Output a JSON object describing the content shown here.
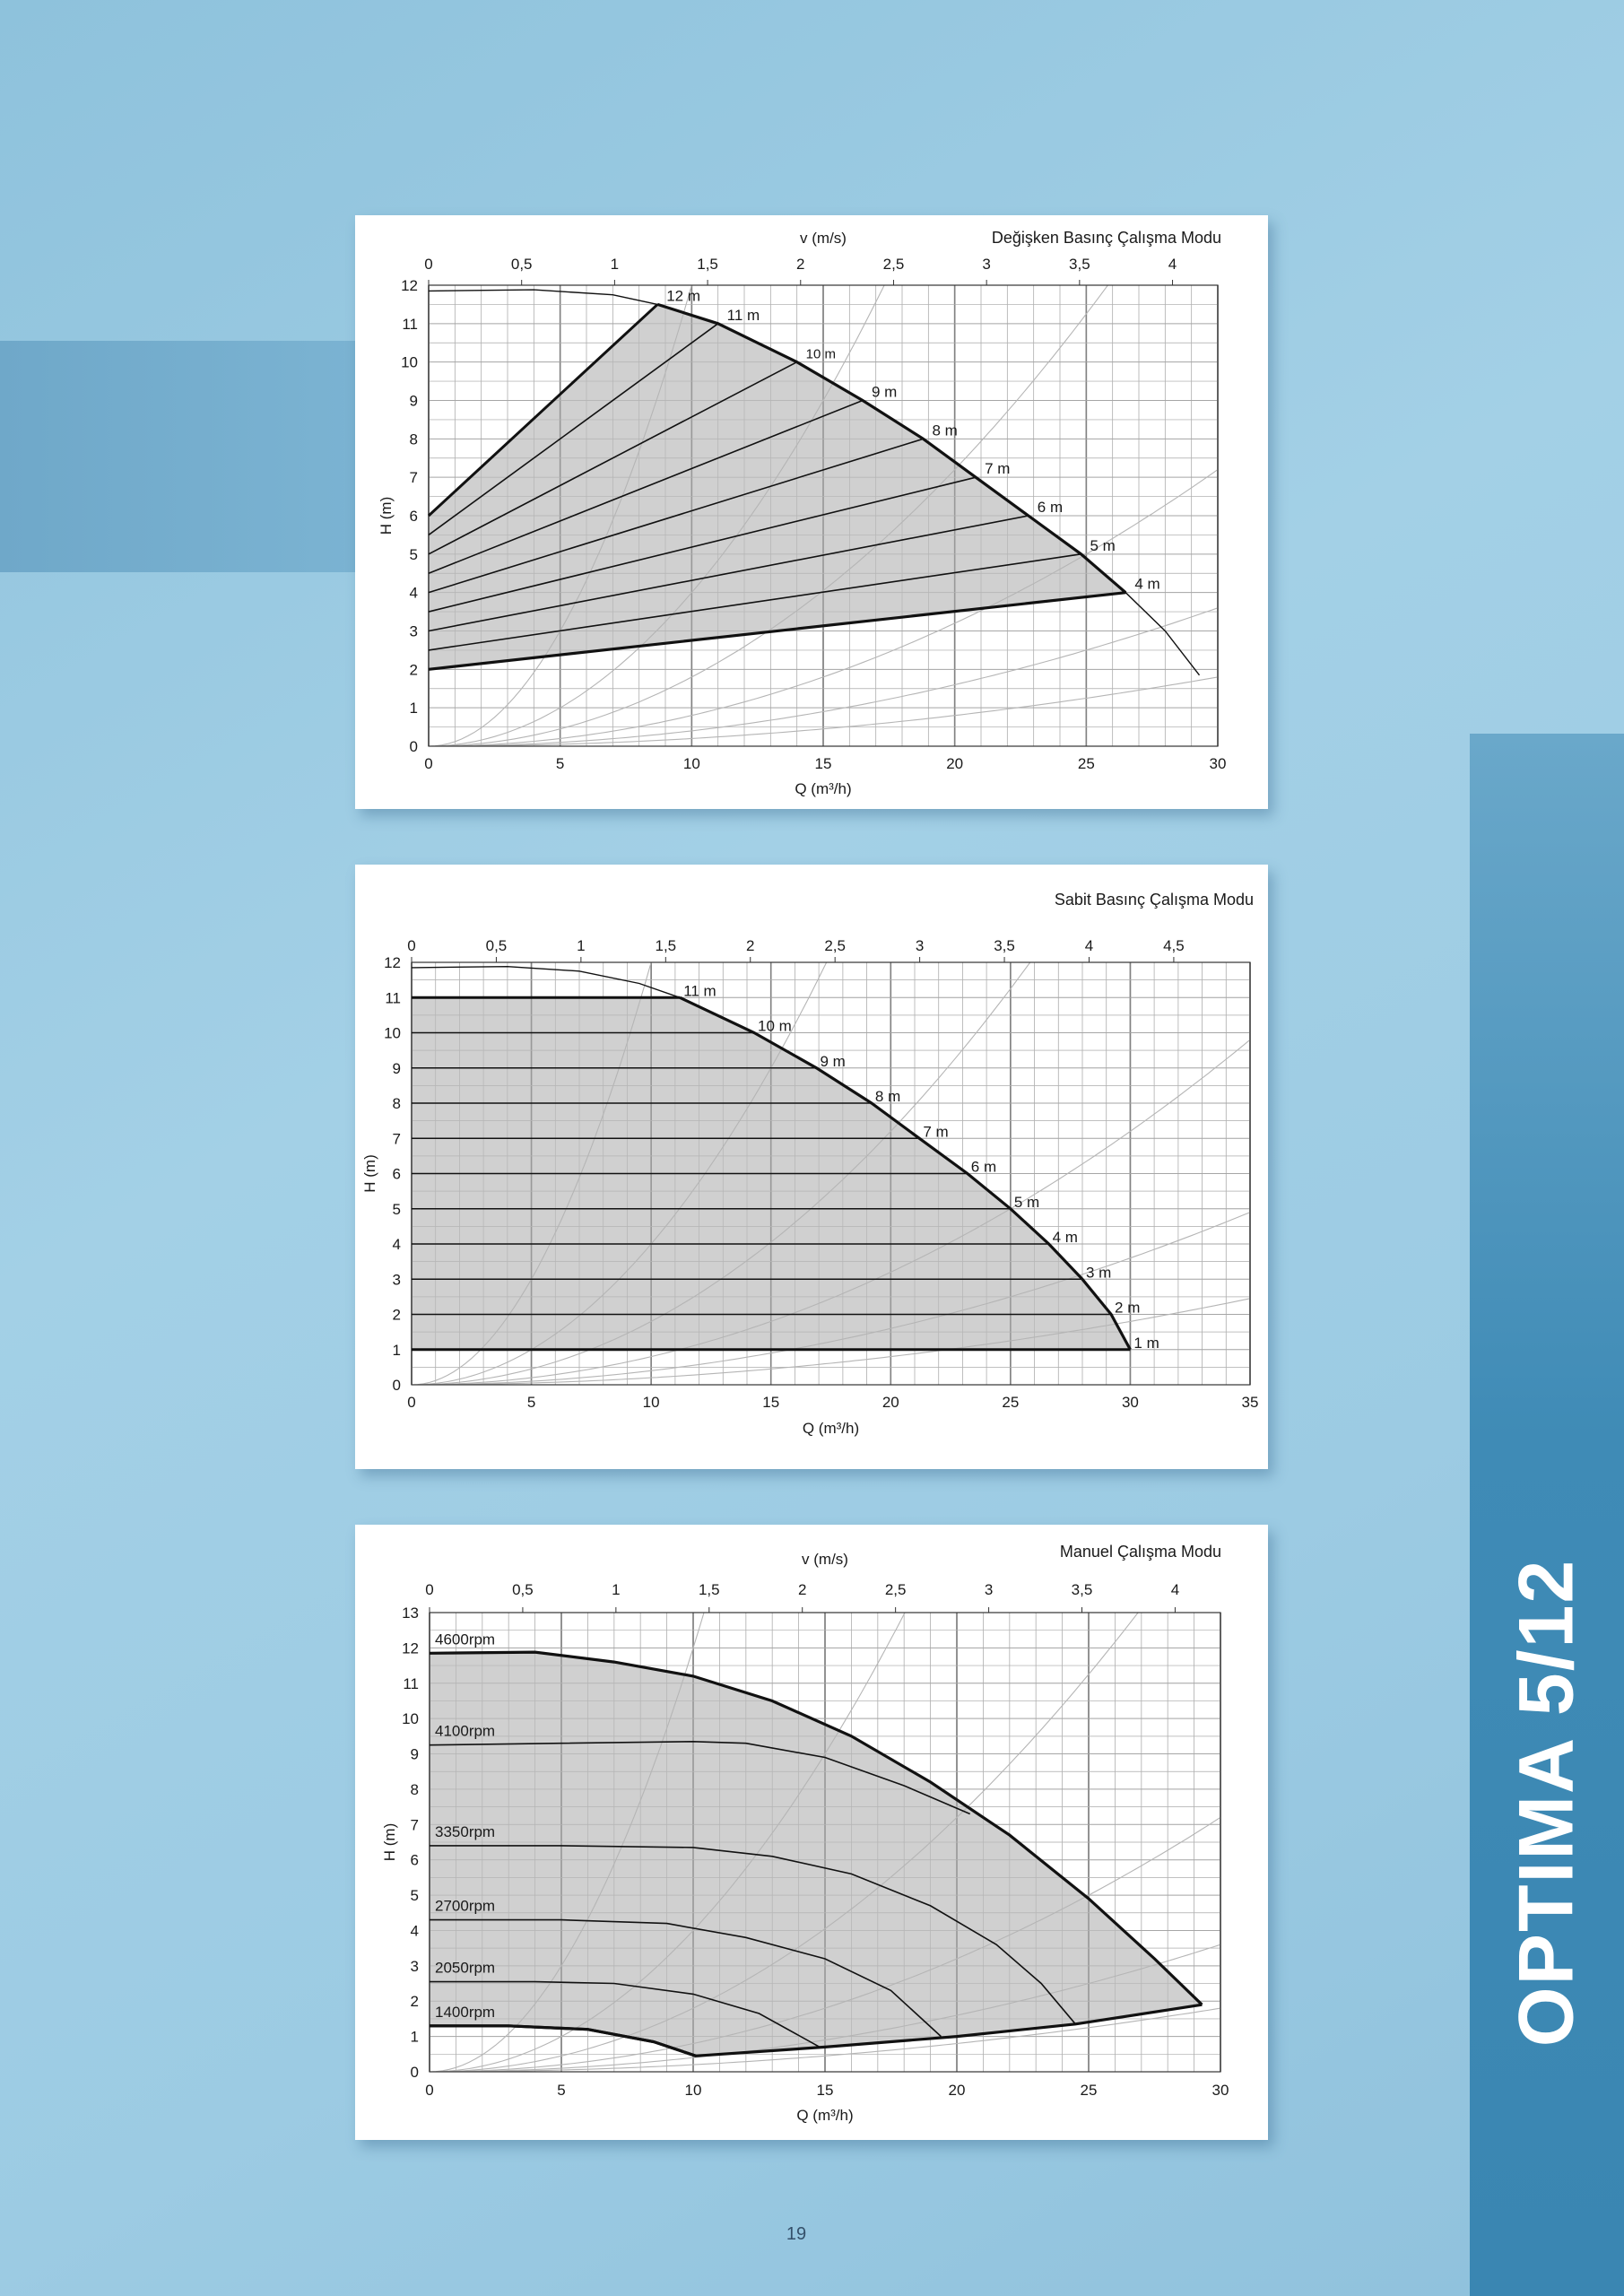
{
  "side_title": "OPTIMA 5/12",
  "page_number": "19",
  "colors": {
    "fill_region": "#c8c8c8",
    "grid_major": "#8a8a8a",
    "grid_minor": "#bdbdbd",
    "system_curve": "#b5b5b5",
    "ink": "#111111"
  },
  "chart_data": [
    {
      "type": "line",
      "title": "Değişken Basınç Çalışma Modu",
      "xlabel": "Q (m³/h)",
      "ylabel": "H (m)",
      "top_axis_label": "v (m/s)",
      "xlim": [
        0,
        30
      ],
      "ylim": [
        0,
        12
      ],
      "x_ticks": [
        "0",
        "5",
        "10",
        "15",
        "20",
        "25",
        "30"
      ],
      "y_ticks": [
        "0",
        "1",
        "2",
        "3",
        "4",
        "5",
        "6",
        "7",
        "8",
        "9",
        "10",
        "11",
        "12"
      ],
      "top_ticks": [
        "0",
        "0,5",
        "1",
        "1,5",
        "2",
        "2,5",
        "3",
        "3,5",
        "4"
      ],
      "top_scale_q_per_v": 7.07,
      "grid": true,
      "system_curve_coefficients": [
        0.12,
        0.04,
        0.018,
        0.008,
        0.004,
        0.002
      ],
      "max_curve": {
        "name": "",
        "points": [
          [
            0,
            11.85
          ],
          [
            4,
            11.88
          ],
          [
            7,
            11.75
          ],
          [
            8.7,
            11.5
          ],
          [
            11,
            11.0
          ],
          [
            14,
            10.0
          ],
          [
            16.5,
            9.0
          ],
          [
            18.8,
            8.0
          ],
          [
            20.8,
            7.0
          ],
          [
            22.8,
            6.0
          ],
          [
            24.8,
            5.0
          ],
          [
            26.5,
            4.0
          ],
          [
            28,
            3.0
          ],
          [
            29.3,
            1.85
          ]
        ]
      },
      "region_bottom": [
        [
          0,
          2.0
        ],
        [
          26.5,
          4.0
        ]
      ],
      "setpoint_lines": [
        {
          "label": "12 m",
          "h0": 6.0,
          "x1": 8.7,
          "y1": 11.5
        },
        {
          "label": "11 m",
          "h0": 5.5,
          "x1": 11.0,
          "y1": 11.0
        },
        {
          "label": "10 m",
          "h0": 5.0,
          "x1": 14.0,
          "y1": 10.0
        },
        {
          "label": "9 m",
          "h0": 4.5,
          "x1": 16.5,
          "y1": 9.0
        },
        {
          "label": "8 m",
          "h0": 4.0,
          "x1": 18.8,
          "y1": 8.0
        },
        {
          "label": "7 m",
          "h0": 3.5,
          "x1": 20.8,
          "y1": 7.0
        },
        {
          "label": "6 m",
          "h0": 3.0,
          "x1": 22.8,
          "y1": 6.0
        },
        {
          "label": "5 m",
          "h0": 2.5,
          "x1": 24.8,
          "y1": 5.0
        },
        {
          "label": "4 m",
          "h0": 2.0,
          "x1": 26.5,
          "y1": 4.0
        }
      ]
    },
    {
      "type": "line",
      "title": "Sabit Basınç Çalışma Modu",
      "xlabel": "Q (m³/h)",
      "ylabel": "H (m)",
      "top_axis_label": "",
      "xlim": [
        0,
        35
      ],
      "ylim": [
        0,
        12
      ],
      "x_ticks": [
        "0",
        "5",
        "10",
        "15",
        "20",
        "25",
        "30",
        "35"
      ],
      "y_ticks": [
        "0",
        "1",
        "2",
        "3",
        "4",
        "5",
        "6",
        "7",
        "8",
        "9",
        "10",
        "11",
        "12"
      ],
      "top_ticks": [
        "0",
        "0,5",
        "1",
        "1,5",
        "2",
        "2,5",
        "3",
        "3,5",
        "4",
        "4,5"
      ],
      "top_scale_q_per_v": 7.07,
      "grid": true,
      "system_curve_coefficients": [
        0.12,
        0.04,
        0.018,
        0.008,
        0.004,
        0.002
      ],
      "max_curve": {
        "name": "",
        "points": [
          [
            0,
            11.85
          ],
          [
            4,
            11.88
          ],
          [
            7,
            11.75
          ],
          [
            9.5,
            11.4
          ],
          [
            11.2,
            11.0
          ],
          [
            14.3,
            10.0
          ],
          [
            16.9,
            9.0
          ],
          [
            19.2,
            8.0
          ],
          [
            21.2,
            7.0
          ],
          [
            23.2,
            6.0
          ],
          [
            25.0,
            5.0
          ],
          [
            26.6,
            4.0
          ],
          [
            28.0,
            3.0
          ],
          [
            29.2,
            2.0
          ],
          [
            30.0,
            1.0
          ]
        ]
      },
      "constant_pressure_lines": [
        {
          "label": "11 m",
          "h": 11,
          "x_end": 11.2
        },
        {
          "label": "10 m",
          "h": 10,
          "x_end": 14.3
        },
        {
          "label": "9 m",
          "h": 9,
          "x_end": 16.9
        },
        {
          "label": "8 m",
          "h": 8,
          "x_end": 19.2
        },
        {
          "label": "7 m",
          "h": 7,
          "x_end": 21.2
        },
        {
          "label": "6 m",
          "h": 6,
          "x_end": 23.2
        },
        {
          "label": "5 m",
          "h": 5,
          "x_end": 25.0
        },
        {
          "label": "4 m",
          "h": 4,
          "x_end": 26.6
        },
        {
          "label": "3 m",
          "h": 3,
          "x_end": 28.0
        },
        {
          "label": "2 m",
          "h": 2,
          "x_end": 29.2
        },
        {
          "label": "1 m",
          "h": 1,
          "x_end": 30.0
        }
      ]
    },
    {
      "type": "line",
      "title": "Manuel Çalışma Modu",
      "xlabel": "Q (m³/h)",
      "ylabel": "H (m)",
      "top_axis_label": "v (m/s)",
      "xlim": [
        0,
        30
      ],
      "ylim": [
        0,
        13
      ],
      "x_ticks": [
        "0",
        "5",
        "10",
        "15",
        "20",
        "25",
        "30"
      ],
      "y_ticks": [
        "0",
        "1",
        "2",
        "3",
        "4",
        "5",
        "6",
        "7",
        "8",
        "9",
        "10",
        "11",
        "12",
        "13"
      ],
      "top_ticks": [
        "0",
        "0,5",
        "1",
        "1,5",
        "2",
        "2,5",
        "3",
        "3,5",
        "4"
      ],
      "top_scale_q_per_v": 7.07,
      "grid": true,
      "system_curve_coefficients": [
        0.12,
        0.04,
        0.018,
        0.008,
        0.004,
        0.002
      ],
      "region_bottom": [
        [
          0,
          1.3
        ],
        [
          3,
          1.3
        ],
        [
          6,
          1.2
        ],
        [
          8.5,
          0.85
        ],
        [
          10.1,
          0.45
        ],
        [
          15,
          0.7
        ],
        [
          20,
          1.0
        ],
        [
          24.5,
          1.35
        ],
        [
          29.3,
          1.9
        ]
      ],
      "series": [
        {
          "name": "4600rpm",
          "points": [
            [
              0,
              11.85
            ],
            [
              4,
              11.88
            ],
            [
              7,
              11.6
            ],
            [
              10,
              11.2
            ],
            [
              13,
              10.5
            ],
            [
              16,
              9.5
            ],
            [
              19,
              8.2
            ],
            [
              22,
              6.7
            ],
            [
              25,
              4.9
            ],
            [
              27.5,
              3.2
            ],
            [
              29.3,
              1.9
            ]
          ]
        },
        {
          "name": "4100rpm",
          "points": [
            [
              0,
              9.25
            ],
            [
              5,
              9.3
            ],
            [
              10,
              9.35
            ],
            [
              12,
              9.3
            ],
            [
              15,
              8.9
            ],
            [
              18,
              8.1
            ],
            [
              20.5,
              7.3
            ]
          ]
        },
        {
          "name": "3350rpm",
          "points": [
            [
              0,
              6.4
            ],
            [
              5,
              6.4
            ],
            [
              10,
              6.35
            ],
            [
              13,
              6.1
            ],
            [
              16,
              5.6
            ],
            [
              19,
              4.7
            ],
            [
              21.5,
              3.6
            ],
            [
              23.2,
              2.5
            ],
            [
              24.5,
              1.35
            ]
          ]
        },
        {
          "name": "2700rpm",
          "points": [
            [
              0,
              4.3
            ],
            [
              5,
              4.3
            ],
            [
              9,
              4.2
            ],
            [
              12,
              3.8
            ],
            [
              15,
              3.2
            ],
            [
              17.5,
              2.3
            ],
            [
              19.4,
              1.0
            ]
          ]
        },
        {
          "name": "2050rpm",
          "points": [
            [
              0,
              2.55
            ],
            [
              4,
              2.55
            ],
            [
              7,
              2.5
            ],
            [
              10,
              2.2
            ],
            [
              12.5,
              1.65
            ],
            [
              14.8,
              0.7
            ]
          ]
        },
        {
          "name": "1400rpm",
          "points": [
            [
              0,
              1.3
            ],
            [
              3,
              1.3
            ],
            [
              6,
              1.2
            ],
            [
              8.5,
              0.85
            ],
            [
              10.1,
              0.45
            ]
          ]
        }
      ]
    }
  ]
}
